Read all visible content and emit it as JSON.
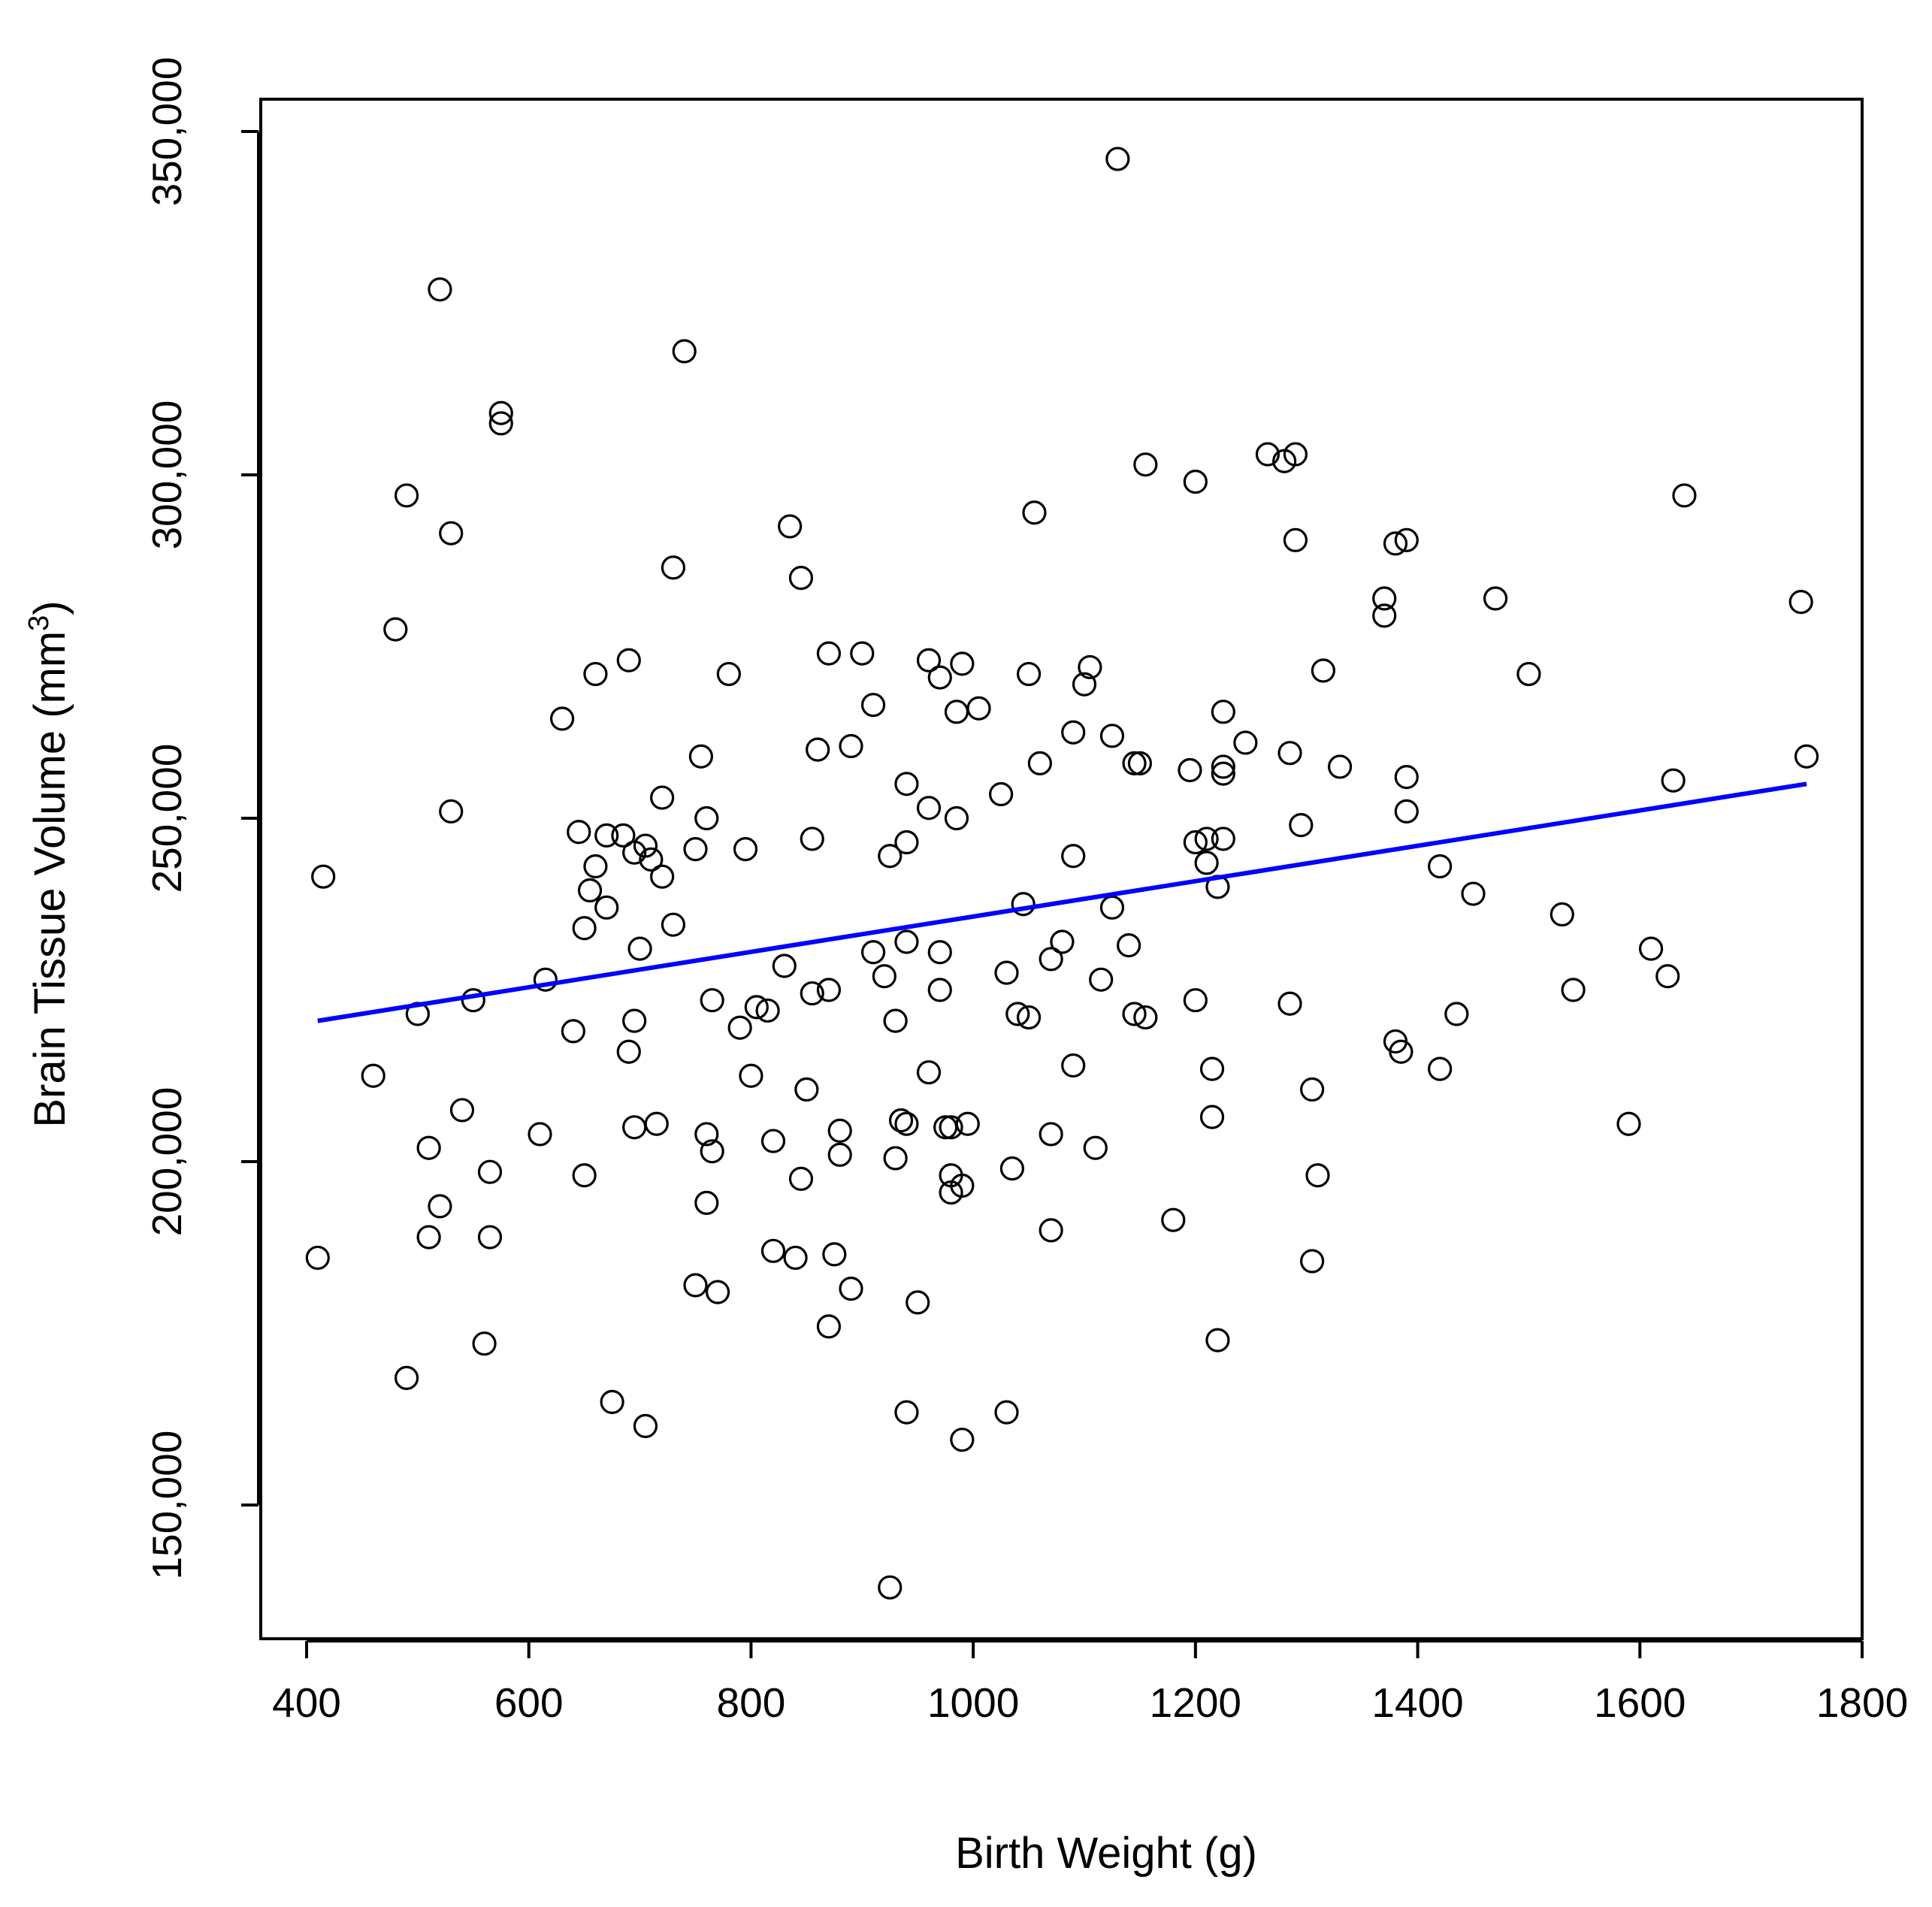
{
  "chart_data": {
    "type": "scatter",
    "xlabel": "Birth Weight (g)",
    "ylabel_main": "Brain Tissue Volume (mm",
    "ylabel_sup": "3",
    "ylabel_close": ")",
    "xlim": [
      365,
      1800
    ],
    "ylim": [
      130000,
      355000
    ],
    "x_ticks": [
      400,
      600,
      800,
      1000,
      1200,
      1400,
      1600,
      1800
    ],
    "x_tick_labels": [
      "400",
      "600",
      "800",
      "1000",
      "1200",
      "1400",
      "1600",
      "1800"
    ],
    "y_ticks": [
      150000,
      200000,
      250000,
      300000,
      350000
    ],
    "y_tick_labels": [
      "150,000",
      "200,000",
      "250,000",
      "300,000",
      "350,000"
    ],
    "grid": false,
    "legend": "none",
    "point_color": "#000000",
    "trend_color": "#0000ff",
    "trend_line": {
      "x": [
        410,
        1750
      ],
      "y": [
        220500,
        255000
      ]
    },
    "points": [
      [
        1130,
        346000
      ],
      [
        520,
        327000
      ],
      [
        740,
        318000
      ],
      [
        575,
        309000
      ],
      [
        575,
        307500
      ],
      [
        490,
        297000
      ],
      [
        530,
        291500
      ],
      [
        730,
        286500
      ],
      [
        480,
        277500
      ],
      [
        1155,
        301500
      ],
      [
        1200,
        299000
      ],
      [
        1265,
        303000
      ],
      [
        1280,
        302000
      ],
      [
        1290,
        303000
      ],
      [
        1640,
        297000
      ],
      [
        835,
        292500
      ],
      [
        845,
        285000
      ],
      [
        1055,
        294500
      ],
      [
        1290,
        290500
      ],
      [
        1380,
        290000
      ],
      [
        1390,
        290500
      ],
      [
        1370,
        282000
      ],
      [
        1370,
        279500
      ],
      [
        1470,
        282000
      ],
      [
        1745,
        281500
      ],
      [
        870,
        274000
      ],
      [
        900,
        274000
      ],
      [
        960,
        273000
      ],
      [
        990,
        272500
      ],
      [
        690,
        273000
      ],
      [
        660,
        271000
      ],
      [
        780,
        271000
      ],
      [
        1050,
        271000
      ],
      [
        1105,
        272000
      ],
      [
        970,
        270500
      ],
      [
        1100,
        269500
      ],
      [
        1315,
        271500
      ],
      [
        1500,
        271000
      ],
      [
        910,
        266500
      ],
      [
        985,
        265500
      ],
      [
        1005,
        266000
      ],
      [
        1225,
        265500
      ],
      [
        630,
        264500
      ],
      [
        1090,
        262500
      ],
      [
        1125,
        262000
      ],
      [
        1245,
        261000
      ],
      [
        890,
        260500
      ],
      [
        860,
        260000
      ],
      [
        755,
        259000
      ],
      [
        1060,
        258000
      ],
      [
        1145,
        258000
      ],
      [
        1150,
        258000
      ],
      [
        1285,
        259500
      ],
      [
        1195,
        257000
      ],
      [
        1225,
        257500
      ],
      [
        1225,
        256500
      ],
      [
        1330,
        257500
      ],
      [
        1390,
        256000
      ],
      [
        1750,
        259000
      ],
      [
        940,
        255000
      ],
      [
        1630,
        255500
      ],
      [
        720,
        253000
      ],
      [
        1025,
        253500
      ],
      [
        960,
        251500
      ],
      [
        530,
        251000
      ],
      [
        760,
        250000
      ],
      [
        985,
        250000
      ],
      [
        1390,
        251000
      ],
      [
        1295,
        249000
      ],
      [
        645,
        248000
      ],
      [
        670,
        247500
      ],
      [
        685,
        247500
      ],
      [
        855,
        247000
      ],
      [
        940,
        246500
      ],
      [
        1200,
        246500
      ],
      [
        1210,
        247000
      ],
      [
        1225,
        247000
      ],
      [
        705,
        246000
      ],
      [
        750,
        245500
      ],
      [
        795,
        245500
      ],
      [
        695,
        245000
      ],
      [
        710,
        244000
      ],
      [
        925,
        244500
      ],
      [
        1090,
        244500
      ],
      [
        1210,
        243500
      ],
      [
        660,
        243000
      ],
      [
        1420,
        243000
      ],
      [
        415,
        241500
      ],
      [
        720,
        241500
      ],
      [
        655,
        239500
      ],
      [
        1220,
        240000
      ],
      [
        1450,
        239000
      ],
      [
        670,
        237000
      ],
      [
        1045,
        237500
      ],
      [
        1125,
        237000
      ],
      [
        1530,
        236000
      ],
      [
        650,
        234000
      ],
      [
        730,
        234500
      ],
      [
        940,
        232000
      ],
      [
        1080,
        232000
      ],
      [
        700,
        231000
      ],
      [
        910,
        230500
      ],
      [
        970,
        230500
      ],
      [
        1140,
        231500
      ],
      [
        1610,
        231000
      ],
      [
        830,
        228500
      ],
      [
        1070,
        229500
      ],
      [
        615,
        226500
      ],
      [
        920,
        227000
      ],
      [
        1030,
        227500
      ],
      [
        1115,
        226500
      ],
      [
        1625,
        227000
      ],
      [
        855,
        224500
      ],
      [
        870,
        225000
      ],
      [
        970,
        225000
      ],
      [
        1540,
        225000
      ],
      [
        550,
        223500
      ],
      [
        765,
        223500
      ],
      [
        805,
        222500
      ],
      [
        815,
        222000
      ],
      [
        1200,
        223500
      ],
      [
        1285,
        223000
      ],
      [
        500,
        221500
      ],
      [
        695,
        220500
      ],
      [
        930,
        220500
      ],
      [
        1040,
        221500
      ],
      [
        1050,
        221000
      ],
      [
        1145,
        221500
      ],
      [
        1155,
        221000
      ],
      [
        1435,
        221500
      ],
      [
        640,
        219000
      ],
      [
        790,
        219500
      ],
      [
        1380,
        217500
      ],
      [
        690,
        216000
      ],
      [
        1385,
        216000
      ],
      [
        1090,
        214000
      ],
      [
        1215,
        213500
      ],
      [
        1420,
        213500
      ],
      [
        460,
        212500
      ],
      [
        800,
        212500
      ],
      [
        960,
        213000
      ],
      [
        850,
        210500
      ],
      [
        1305,
        210500
      ],
      [
        540,
        207500
      ],
      [
        1215,
        206500
      ],
      [
        935,
        206000
      ],
      [
        940,
        205500
      ],
      [
        975,
        205000
      ],
      [
        980,
        205000
      ],
      [
        995,
        205500
      ],
      [
        1590,
        205500
      ],
      [
        695,
        205000
      ],
      [
        715,
        205500
      ],
      [
        610,
        204000
      ],
      [
        760,
        204000
      ],
      [
        880,
        204500
      ],
      [
        1070,
        204000
      ],
      [
        820,
        203000
      ],
      [
        510,
        202000
      ],
      [
        765,
        201500
      ],
      [
        1110,
        202000
      ],
      [
        880,
        201000
      ],
      [
        930,
        200500
      ],
      [
        1035,
        199000
      ],
      [
        565,
        198500
      ],
      [
        650,
        198000
      ],
      [
        980,
        198000
      ],
      [
        1310,
        198000
      ],
      [
        845,
        197500
      ],
      [
        990,
        196500
      ],
      [
        980,
        195500
      ],
      [
        520,
        193500
      ],
      [
        760,
        194000
      ],
      [
        1180,
        191500
      ],
      [
        510,
        189000
      ],
      [
        565,
        189000
      ],
      [
        1070,
        190000
      ],
      [
        410,
        186000
      ],
      [
        820,
        187000
      ],
      [
        840,
        186000
      ],
      [
        875,
        186500
      ],
      [
        1305,
        185500
      ],
      [
        750,
        182000
      ],
      [
        770,
        181000
      ],
      [
        890,
        181500
      ],
      [
        950,
        179500
      ],
      [
        870,
        176000
      ],
      [
        560,
        173500
      ],
      [
        1220,
        174000
      ],
      [
        490,
        168500
      ],
      [
        675,
        165000
      ],
      [
        705,
        161500
      ],
      [
        940,
        163500
      ],
      [
        1030,
        163500
      ],
      [
        990,
        159500
      ],
      [
        925,
        138000
      ]
    ]
  }
}
